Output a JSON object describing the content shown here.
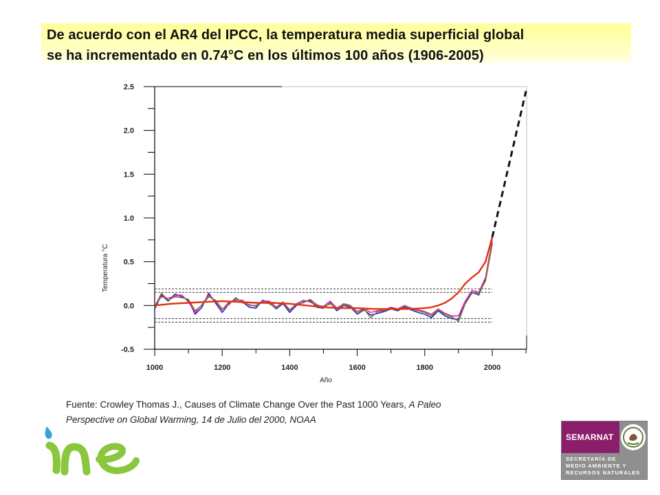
{
  "title": {
    "line1": "De acuerdo con el AR4 del IPCC, la temperatura media superficial global",
    "line2": "se ha incrementado en 0.74°C en los últimos 100 años (1906-2005)"
  },
  "caption": {
    "line1_plain": "Fuente: Crowley Thomas J., Causes of Climate Change Over the Past 1000 Years, ",
    "line1_italic": "A Paleo",
    "line2_italic": "Perspective on Global Warming, 14 de Julio del 2000, NOAA"
  },
  "logos": {
    "ine": "ine",
    "semarnat_name": "SEMARNAT",
    "semarnat_line1": "SECRETARÍA DE",
    "semarnat_line2": "MEDIO AMBIENTE Y",
    "semarnat_line3": "RECURSOS NATURALES"
  },
  "chart_data": {
    "type": "line",
    "xlabel": "Año",
    "ylabel": "Temperatura °C",
    "xlim": [
      1000,
      2100
    ],
    "ylim": [
      -0.5,
      2.5
    ],
    "x_ticks": [
      "1000",
      "1200",
      "1400",
      "1600",
      "1800",
      "2000"
    ],
    "y_ticks": [
      "2.5",
      "2.0",
      "1.5",
      "1.0",
      "0.5",
      "0.0",
      "-0.5"
    ],
    "reference_band": {
      "upper": [
        0.15,
        0.19
      ],
      "lower": [
        -0.15,
        -0.19
      ],
      "style": "dashed"
    },
    "series": [
      {
        "color": "#2222cc",
        "x": [
          1000,
          1020,
          1040,
          1060,
          1080,
          1100,
          1120,
          1140,
          1160,
          1180,
          1200,
          1220,
          1240,
          1260,
          1280,
          1300,
          1320,
          1340,
          1360,
          1380,
          1400,
          1420,
          1440,
          1460,
          1480,
          1500,
          1520,
          1540,
          1560,
          1580,
          1600,
          1620,
          1640,
          1660,
          1680,
          1700,
          1720,
          1740,
          1760,
          1780,
          1800,
          1820,
          1840,
          1860,
          1880,
          1900,
          1920,
          1940,
          1960,
          1980,
          2000
        ],
        "y": [
          -0.04,
          0.12,
          0.05,
          0.13,
          0.1,
          0.06,
          -0.1,
          -0.02,
          0.14,
          0.03,
          -0.08,
          0.02,
          0.08,
          0.04,
          -0.02,
          -0.03,
          0.06,
          0.03,
          -0.04,
          0.02,
          -0.08,
          0.0,
          0.04,
          0.06,
          -0.02,
          -0.03,
          0.03,
          -0.06,
          0.0,
          -0.02,
          -0.1,
          -0.05,
          -0.11,
          -0.09,
          -0.07,
          -0.04,
          -0.06,
          -0.02,
          -0.05,
          -0.08,
          -0.1,
          -0.14,
          -0.06,
          -0.12,
          -0.15,
          -0.16,
          0.03,
          0.15,
          0.12,
          0.3,
          0.72
        ]
      },
      {
        "color": "#dd22aa",
        "x": [
          1000,
          1020,
          1040,
          1060,
          1080,
          1100,
          1120,
          1140,
          1160,
          1180,
          1200,
          1220,
          1240,
          1260,
          1280,
          1300,
          1320,
          1340,
          1360,
          1380,
          1400,
          1420,
          1440,
          1460,
          1480,
          1500,
          1520,
          1540,
          1560,
          1580,
          1600,
          1620,
          1640,
          1660,
          1680,
          1700,
          1720,
          1740,
          1760,
          1780,
          1800,
          1820,
          1840,
          1860,
          1880,
          1900,
          1920,
          1940,
          1960,
          1980,
          2000
        ],
        "y": [
          0.0,
          0.1,
          0.08,
          0.11,
          0.12,
          0.04,
          -0.08,
          0.01,
          0.12,
          0.05,
          -0.05,
          0.04,
          0.06,
          0.06,
          0.0,
          0.0,
          0.05,
          0.05,
          -0.02,
          0.04,
          -0.05,
          0.02,
          0.06,
          0.04,
          0.0,
          -0.01,
          0.05,
          -0.03,
          0.02,
          0.0,
          -0.07,
          -0.03,
          -0.08,
          -0.06,
          -0.05,
          -0.02,
          -0.04,
          0.0,
          -0.03,
          -0.05,
          -0.07,
          -0.1,
          -0.04,
          -0.09,
          -0.12,
          -0.12,
          0.05,
          0.17,
          0.15,
          0.32,
          0.75
        ]
      },
      {
        "color": "#7a7a2a",
        "x": [
          1000,
          1020,
          1040,
          1060,
          1080,
          1100,
          1120,
          1140,
          1160,
          1180,
          1200,
          1220,
          1240,
          1260,
          1280,
          1300,
          1320,
          1340,
          1360,
          1380,
          1400,
          1420,
          1440,
          1460,
          1480,
          1500,
          1520,
          1540,
          1560,
          1580,
          1600,
          1620,
          1640,
          1660,
          1680,
          1700,
          1720,
          1740,
          1760,
          1780,
          1800,
          1820,
          1840,
          1860,
          1880,
          1900,
          1920,
          1940,
          1960,
          1980,
          2000
        ],
        "y": [
          -0.02,
          0.14,
          0.06,
          0.1,
          0.09,
          0.07,
          -0.06,
          0.0,
          0.1,
          0.06,
          -0.04,
          0.01,
          0.09,
          0.03,
          0.01,
          -0.01,
          0.04,
          0.02,
          -0.03,
          0.03,
          -0.06,
          0.02,
          0.03,
          0.07,
          0.01,
          -0.02,
          0.02,
          -0.04,
          0.01,
          -0.01,
          -0.09,
          -0.04,
          -0.14,
          -0.07,
          -0.06,
          -0.03,
          -0.05,
          -0.01,
          -0.04,
          -0.06,
          -0.08,
          -0.12,
          -0.05,
          -0.1,
          -0.13,
          -0.18,
          0.02,
          0.14,
          0.14,
          0.28,
          0.7
        ]
      },
      {
        "color": "#dd3311",
        "x": [
          1000,
          1050,
          1100,
          1150,
          1200,
          1250,
          1300,
          1350,
          1400,
          1450,
          1500,
          1550,
          1600,
          1650,
          1700,
          1750,
          1800,
          1820,
          1840,
          1860,
          1880,
          1900,
          1920,
          1940,
          1960,
          1980,
          2000
        ],
        "y": [
          0.0,
          0.02,
          0.03,
          0.04,
          0.05,
          0.04,
          0.03,
          0.03,
          0.02,
          0.0,
          -0.02,
          -0.03,
          -0.03,
          -0.04,
          -0.04,
          -0.04,
          -0.03,
          -0.02,
          0.0,
          0.03,
          0.08,
          0.15,
          0.25,
          0.32,
          0.38,
          0.5,
          0.78
        ]
      },
      {
        "color": "#111111",
        "dashed": true,
        "x": [
          2000,
          2100
        ],
        "y": [
          0.78,
          2.45
        ]
      }
    ]
  }
}
